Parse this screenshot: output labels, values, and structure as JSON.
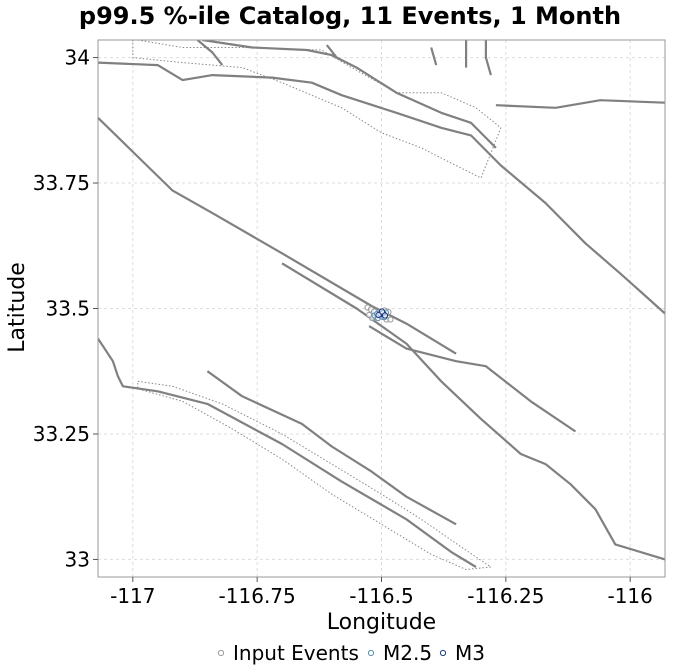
{
  "chart_data": {
    "type": "scatter",
    "title": "p99.5 %-ile Catalog, 11 Events, 1 Month",
    "xlabel": "Longitude",
    "ylabel": "Latitude",
    "xlim": [
      -117.07,
      -115.93
    ],
    "ylim": [
      32.965,
      34.035
    ],
    "xticks": [
      -117,
      -116.75,
      -116.5,
      -116.25,
      -116
    ],
    "xtick_labels": [
      "-117",
      "-116.75",
      "-116.5",
      "-116.25",
      "-116"
    ],
    "yticks": [
      33,
      33.25,
      33.5,
      33.75,
      34
    ],
    "ytick_labels": [
      "33",
      "33.25",
      "33.5",
      "33.75",
      "34"
    ],
    "grid": true,
    "legend_position": "bottom",
    "series": [
      {
        "name": "Input Events",
        "color": "#999999",
        "points": [
          [
            -116.528,
            33.502
          ],
          [
            -116.521,
            33.498
          ],
          [
            -116.515,
            33.494
          ],
          [
            -116.508,
            33.49
          ],
          [
            -116.503,
            33.487
          ],
          [
            -116.497,
            33.483
          ],
          [
            -116.49,
            33.478
          ],
          [
            -116.486,
            33.493
          ],
          [
            -116.512,
            33.483
          ],
          [
            -116.499,
            33.491
          ],
          [
            -116.519,
            33.481
          ],
          [
            -116.494,
            33.496
          ],
          [
            -116.482,
            33.478
          ],
          [
            -116.525,
            33.487
          ]
        ]
      },
      {
        "name": "M2.5",
        "color": "#5b8fb5",
        "points": [
          [
            -116.514,
            33.486
          ],
          [
            -116.507,
            33.481
          ],
          [
            -116.5,
            33.484
          ],
          [
            -116.496,
            33.489
          ],
          [
            -116.491,
            33.492
          ],
          [
            -116.503,
            33.493
          ],
          [
            -116.509,
            33.489
          ],
          [
            -116.494,
            33.483
          ]
        ]
      },
      {
        "name": "M3",
        "color": "#1a3a8a",
        "points": [
          [
            -116.502,
            33.489
          ],
          [
            -116.497,
            33.491
          ],
          [
            -116.493,
            33.486
          ],
          [
            -116.506,
            33.487
          ],
          [
            -116.499,
            33.494
          ]
        ]
      }
    ],
    "fault_traces": [
      [
        [
          -117.07,
          33.88
        ],
        [
          -116.92,
          33.735
        ],
        [
          -116.84,
          33.69
        ],
        [
          -116.7,
          33.61
        ],
        [
          -116.52,
          33.505
        ],
        [
          -116.45,
          33.47
        ],
        [
          -116.35,
          33.41
        ]
      ],
      [
        [
          -116.525,
          33.465
        ],
        [
          -116.45,
          33.42
        ],
        [
          -116.35,
          33.395
        ],
        [
          -116.29,
          33.385
        ],
        [
          -116.2,
          33.315
        ],
        [
          -116.11,
          33.255
        ]
      ],
      [
        [
          -116.7,
          33.59
        ],
        [
          -116.55,
          33.5
        ],
        [
          -116.45,
          33.43
        ],
        [
          -116.38,
          33.355
        ],
        [
          -116.3,
          33.28
        ],
        [
          -116.22,
          33.21
        ],
        [
          -116.17,
          33.19
        ],
        [
          -116.12,
          33.15
        ],
        [
          -116.07,
          33.1
        ],
        [
          -116.03,
          33.03
        ],
        [
          -115.93,
          33.0
        ]
      ],
      [
        [
          -117.07,
          33.44
        ],
        [
          -117.04,
          33.395
        ],
        [
          -117.03,
          33.365
        ],
        [
          -117.02,
          33.345
        ],
        [
          -116.95,
          33.335
        ],
        [
          -116.85,
          33.31
        ],
        [
          -116.7,
          33.23
        ],
        [
          -116.58,
          33.155
        ],
        [
          -116.45,
          33.08
        ],
        [
          -116.36,
          33.015
        ],
        [
          -116.31,
          32.985
        ]
      ],
      [
        [
          -116.85,
          33.375
        ],
        [
          -116.78,
          33.325
        ],
        [
          -116.66,
          33.27
        ],
        [
          -116.6,
          33.225
        ],
        [
          -116.52,
          33.175
        ],
        [
          -116.45,
          33.125
        ],
        [
          -116.35,
          33.07
        ]
      ],
      [
        [
          -117.07,
          33.99
        ],
        [
          -116.95,
          33.985
        ],
        [
          -116.9,
          33.955
        ],
        [
          -116.84,
          33.965
        ],
        [
          -116.72,
          33.96
        ],
        [
          -116.64,
          33.95
        ],
        [
          -116.58,
          33.925
        ],
        [
          -116.47,
          33.89
        ],
        [
          -116.38,
          33.86
        ],
        [
          -116.32,
          33.845
        ],
        [
          -116.26,
          33.785
        ],
        [
          -116.17,
          33.71
        ],
        [
          -116.09,
          33.63
        ],
        [
          -116.02,
          33.57
        ],
        [
          -115.93,
          33.49
        ]
      ],
      [
        [
          -116.86,
          34.035
        ],
        [
          -116.76,
          34.02
        ],
        [
          -116.65,
          34.015
        ],
        [
          -116.6,
          34.005
        ],
        [
          -116.55,
          33.98
        ],
        [
          -116.47,
          33.93
        ],
        [
          -116.38,
          33.89
        ],
        [
          -116.32,
          33.87
        ],
        [
          -116.27,
          33.82
        ]
      ],
      [
        [
          -116.87,
          34.035
        ],
        [
          -116.84,
          34.01
        ],
        [
          -116.82,
          33.985
        ]
      ],
      [
        [
          -116.27,
          33.905
        ],
        [
          -116.15,
          33.9
        ],
        [
          -116.06,
          33.915
        ],
        [
          -115.93,
          33.91
        ]
      ],
      [
        [
          -116.33,
          34.035
        ],
        [
          -116.33,
          33.98
        ]
      ],
      [
        [
          -116.29,
          34.035
        ],
        [
          -116.29,
          34.0
        ],
        [
          -116.28,
          33.965
        ]
      ],
      [
        [
          -116.4,
          34.02
        ],
        [
          -116.39,
          33.985
        ]
      ],
      [
        [
          -116.61,
          34.025
        ],
        [
          -116.59,
          34.0
        ]
      ]
    ],
    "dotted_zones": [
      [
        [
          -116.99,
          34.035
        ],
        [
          -116.9,
          34.02
        ],
        [
          -116.78,
          34.02
        ],
        [
          -116.62,
          34.015
        ],
        [
          -116.56,
          33.98
        ],
        [
          -116.47,
          33.93
        ],
        [
          -116.38,
          33.93
        ],
        [
          -116.31,
          33.9
        ],
        [
          -116.26,
          33.86
        ],
        [
          -116.3,
          33.76
        ],
        [
          -116.36,
          33.79
        ],
        [
          -116.42,
          33.82
        ],
        [
          -116.5,
          33.85
        ],
        [
          -116.58,
          33.9
        ],
        [
          -116.7,
          33.95
        ],
        [
          -116.78,
          33.98
        ],
        [
          -116.9,
          33.99
        ],
        [
          -117.0,
          34.0
        ],
        [
          -117.0,
          34.035
        ]
      ],
      [
        [
          -116.99,
          33.355
        ],
        [
          -116.92,
          33.345
        ],
        [
          -116.82,
          33.31
        ],
        [
          -116.7,
          33.25
        ],
        [
          -116.6,
          33.19
        ],
        [
          -116.5,
          33.13
        ],
        [
          -116.42,
          33.08
        ],
        [
          -116.34,
          33.025
        ],
        [
          -116.28,
          32.985
        ],
        [
          -116.33,
          32.98
        ],
        [
          -116.4,
          33.01
        ],
        [
          -116.5,
          33.07
        ],
        [
          -116.6,
          33.13
        ],
        [
          -116.7,
          33.2
        ],
        [
          -116.8,
          33.26
        ],
        [
          -116.9,
          33.315
        ],
        [
          -116.99,
          33.34
        ]
      ]
    ]
  }
}
